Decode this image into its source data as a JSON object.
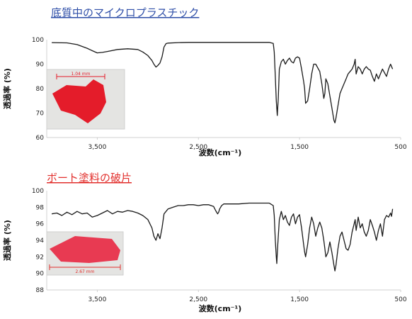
{
  "colors": {
    "title_blue": "#2f4fa8",
    "title_red": "#e2302d",
    "line": "#1a1a1a",
    "axis": "#d0d0d0"
  },
  "chart_data": [
    {
      "type": "line",
      "title": "底質中のマイクロプラスチック",
      "xlabel": "波数(cm⁻¹)",
      "ylabel": "透過率 (%)",
      "xlim": [
        4000,
        500
      ],
      "ylim": [
        60,
        100
      ],
      "x_ticks": [
        3500,
        2500,
        1500,
        500
      ],
      "x_tick_labels": [
        "3,500",
        "2,500",
        "1,500",
        "500"
      ],
      "y_ticks": [
        60,
        70,
        80,
        90,
        100
      ],
      "y_tick_labels": [
        "60",
        "70",
        "80",
        "90",
        "100"
      ],
      "inset_photo": {
        "scale_label": "1.04 mm",
        "color": "#e41c2a"
      },
      "series": [
        {
          "x": [
            3950,
            3800,
            3700,
            3600,
            3550,
            3500,
            3450,
            3400,
            3300,
            3200,
            3100,
            3050,
            3000,
            2960,
            2940,
            2920,
            2900,
            2880,
            2860,
            2840,
            2820,
            2800,
            2700,
            2600,
            2500,
            2400,
            2200,
            2000,
            1900,
            1800,
            1760,
            1750,
            1740,
            1730,
            1720,
            1710,
            1700,
            1680,
            1660,
            1640,
            1620,
            1600,
            1580,
            1560,
            1540,
            1520,
            1500,
            1480,
            1460,
            1450,
            1440,
            1420,
            1400,
            1380,
            1360,
            1340,
            1300,
            1280,
            1260,
            1250,
            1240,
            1220,
            1200,
            1180,
            1160,
            1150,
            1140,
            1120,
            1100,
            1080,
            1060,
            1040,
            1020,
            1000,
            980,
            960,
            950,
            940,
            920,
            900,
            880,
            860,
            840,
            820,
            800,
            780,
            760,
            740,
            720,
            700,
            680,
            660,
            640,
            620,
            600,
            580
          ],
          "y": [
            98.8,
            98.7,
            98.0,
            96.5,
            95.5,
            94.6,
            94.8,
            95.2,
            96.0,
            96.3,
            96.0,
            95.0,
            93.5,
            91.5,
            90.0,
            88.8,
            89.5,
            90.5,
            93.0,
            97.0,
            98.4,
            98.6,
            98.8,
            98.9,
            98.9,
            98.9,
            98.9,
            98.9,
            98.9,
            98.9,
            98.5,
            95.0,
            85.0,
            75.0,
            69.0,
            76.0,
            88.0,
            91.0,
            92.0,
            90.0,
            91.5,
            92.5,
            91.0,
            90.5,
            92.5,
            93.0,
            92.5,
            88.0,
            83.0,
            80.0,
            74.0,
            75.0,
            80.0,
            86.0,
            90.0,
            90.0,
            87.0,
            82.0,
            76.0,
            78.0,
            84.0,
            82.0,
            77.0,
            72.0,
            67.0,
            66.0,
            68.0,
            73.0,
            78.0,
            80.0,
            82.0,
            84.0,
            86.0,
            87.0,
            88.0,
            90.0,
            92.0,
            86.0,
            89.0,
            88.0,
            86.0,
            88.0,
            89.0,
            88.0,
            87.5,
            85.0,
            83.0,
            86.0,
            84.0,
            86.0,
            88.0,
            86.5,
            85.0,
            88.0,
            90.0,
            88.0
          ]
        }
      ]
    },
    {
      "type": "line",
      "title": "ボート塗料の破片",
      "xlabel": "波数(cm⁻¹)",
      "ylabel": "透過率 (%)",
      "xlim": [
        4000,
        500
      ],
      "ylim": [
        88,
        100
      ],
      "x_ticks": [
        3500,
        2500,
        1500,
        500
      ],
      "x_tick_labels": [
        "3,500",
        "2,500",
        "1,500",
        "500"
      ],
      "y_ticks": [
        88,
        90,
        92,
        94,
        96,
        98,
        100
      ],
      "y_tick_labels": [
        "88",
        "90",
        "92",
        "94",
        "96",
        "98",
        "100"
      ],
      "inset_photo": {
        "scale_label": "2.67 mm",
        "color": "#e83a52"
      },
      "series": [
        {
          "x": [
            3950,
            3900,
            3850,
            3800,
            3750,
            3700,
            3650,
            3600,
            3550,
            3500,
            3450,
            3400,
            3350,
            3300,
            3250,
            3200,
            3150,
            3100,
            3050,
            3000,
            2960,
            2940,
            2920,
            2900,
            2880,
            2860,
            2840,
            2800,
            2750,
            2700,
            2650,
            2600,
            2550,
            2500,
            2450,
            2400,
            2350,
            2330,
            2310,
            2300,
            2290,
            2270,
            2250,
            2200,
            2100,
            2000,
            1900,
            1800,
            1760,
            1750,
            1740,
            1730,
            1725,
            1715,
            1700,
            1680,
            1660,
            1640,
            1620,
            1600,
            1580,
            1560,
            1540,
            1520,
            1500,
            1480,
            1460,
            1450,
            1440,
            1420,
            1400,
            1380,
            1360,
            1340,
            1320,
            1300,
            1280,
            1260,
            1250,
            1240,
            1220,
            1200,
            1180,
            1160,
            1150,
            1140,
            1120,
            1100,
            1080,
            1060,
            1040,
            1020,
            1000,
            980,
            960,
            950,
            940,
            920,
            900,
            880,
            860,
            840,
            820,
            800,
            780,
            760,
            740,
            720,
            700,
            680,
            660,
            640,
            620,
            600,
            590,
            580
          ],
          "y": [
            97.2,
            97.3,
            97.0,
            97.4,
            97.1,
            97.5,
            97.2,
            97.3,
            96.8,
            97.0,
            97.3,
            97.6,
            97.2,
            97.5,
            97.4,
            97.6,
            97.5,
            97.3,
            97.0,
            96.5,
            95.5,
            94.5,
            94.0,
            94.8,
            94.2,
            95.5,
            97.2,
            97.8,
            98.0,
            98.2,
            98.2,
            98.3,
            98.3,
            98.2,
            98.3,
            98.3,
            98.1,
            97.6,
            97.2,
            97.4,
            97.8,
            98.2,
            98.4,
            98.4,
            98.4,
            98.5,
            98.5,
            98.5,
            98.2,
            97.0,
            94.0,
            92.0,
            91.2,
            93.5,
            96.5,
            97.5,
            96.5,
            97.0,
            96.2,
            95.8,
            96.8,
            97.2,
            96.0,
            96.8,
            97.1,
            95.5,
            93.5,
            92.6,
            92.0,
            93.5,
            95.5,
            96.8,
            96.0,
            94.5,
            95.5,
            96.2,
            95.5,
            94.0,
            93.0,
            92.0,
            92.5,
            93.8,
            92.5,
            91.0,
            90.3,
            91.0,
            93.0,
            94.5,
            95.0,
            94.0,
            93.0,
            92.8,
            93.5,
            95.0,
            96.0,
            96.5,
            95.2,
            96.8,
            95.5,
            96.0,
            95.0,
            94.5,
            95.2,
            96.5,
            95.8,
            95.0,
            94.0,
            95.2,
            96.0,
            94.5,
            96.5,
            97.0,
            96.8,
            97.3,
            96.9,
            97.8
          ]
        }
      ]
    }
  ]
}
